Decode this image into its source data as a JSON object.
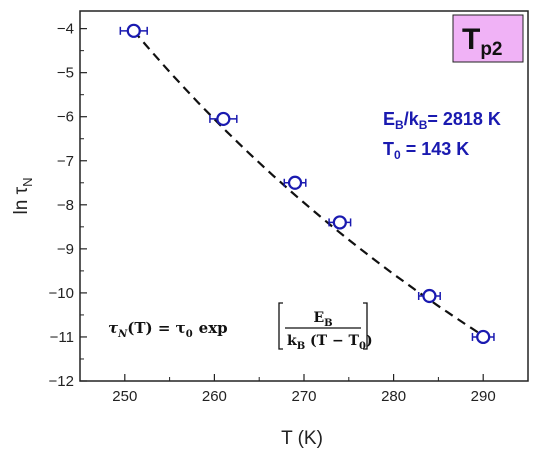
{
  "chart_data": {
    "type": "scatter",
    "xlabel": "T (K)",
    "xlim": [
      245,
      295
    ],
    "ylim": [
      -12,
      -3.6
    ],
    "x_ticks": [
      250,
      260,
      270,
      280,
      290
    ],
    "y_ticks": [
      -12,
      -11,
      -10,
      -9,
      -8,
      -7,
      -6,
      -5,
      -4
    ],
    "ylabel": {
      "main": "ln τ",
      "sub": "N"
    },
    "series": [
      {
        "marker": "open-circle",
        "color": "#1a1ab0",
        "x": [
          251,
          261,
          269,
          274,
          284,
          290
        ],
        "y": [
          -4.05,
          -6.05,
          -7.5,
          -8.4,
          -10.07,
          -11.0
        ],
        "x_error": [
          1.5,
          1.5,
          1.2,
          1.2,
          1.2,
          1.2
        ]
      }
    ],
    "fit": {
      "style": "dashed",
      "color": "#111111",
      "model": "Vogel-Fulcher",
      "EB_over_kB": 2818,
      "T0": 143,
      "x_range": [
        251,
        290
      ]
    },
    "badge": {
      "main": "T",
      "sub": "p2",
      "color": "#f0b2f6"
    },
    "annotation": {
      "line1_main": "E",
      "line1_sub1": "B",
      "line1_mid": "/k",
      "line1_sub2": "B",
      "line1_end": "= 2818 K",
      "line2_main": "T",
      "line2_sub": "0",
      "line2_end": " = 143 K"
    },
    "formula": {
      "tau": "τ",
      "tau_sub": "N",
      "lhs_arg": "(T) = ",
      "tau0": "τ",
      "tau0_sub": "0",
      "exp": "exp",
      "num": "E",
      "num_sub": "B",
      "den_k": "k",
      "den_k_sub": "B",
      "den_mid": " (T − T",
      "den_T0_sub": "0",
      "den_end": ")"
    }
  }
}
